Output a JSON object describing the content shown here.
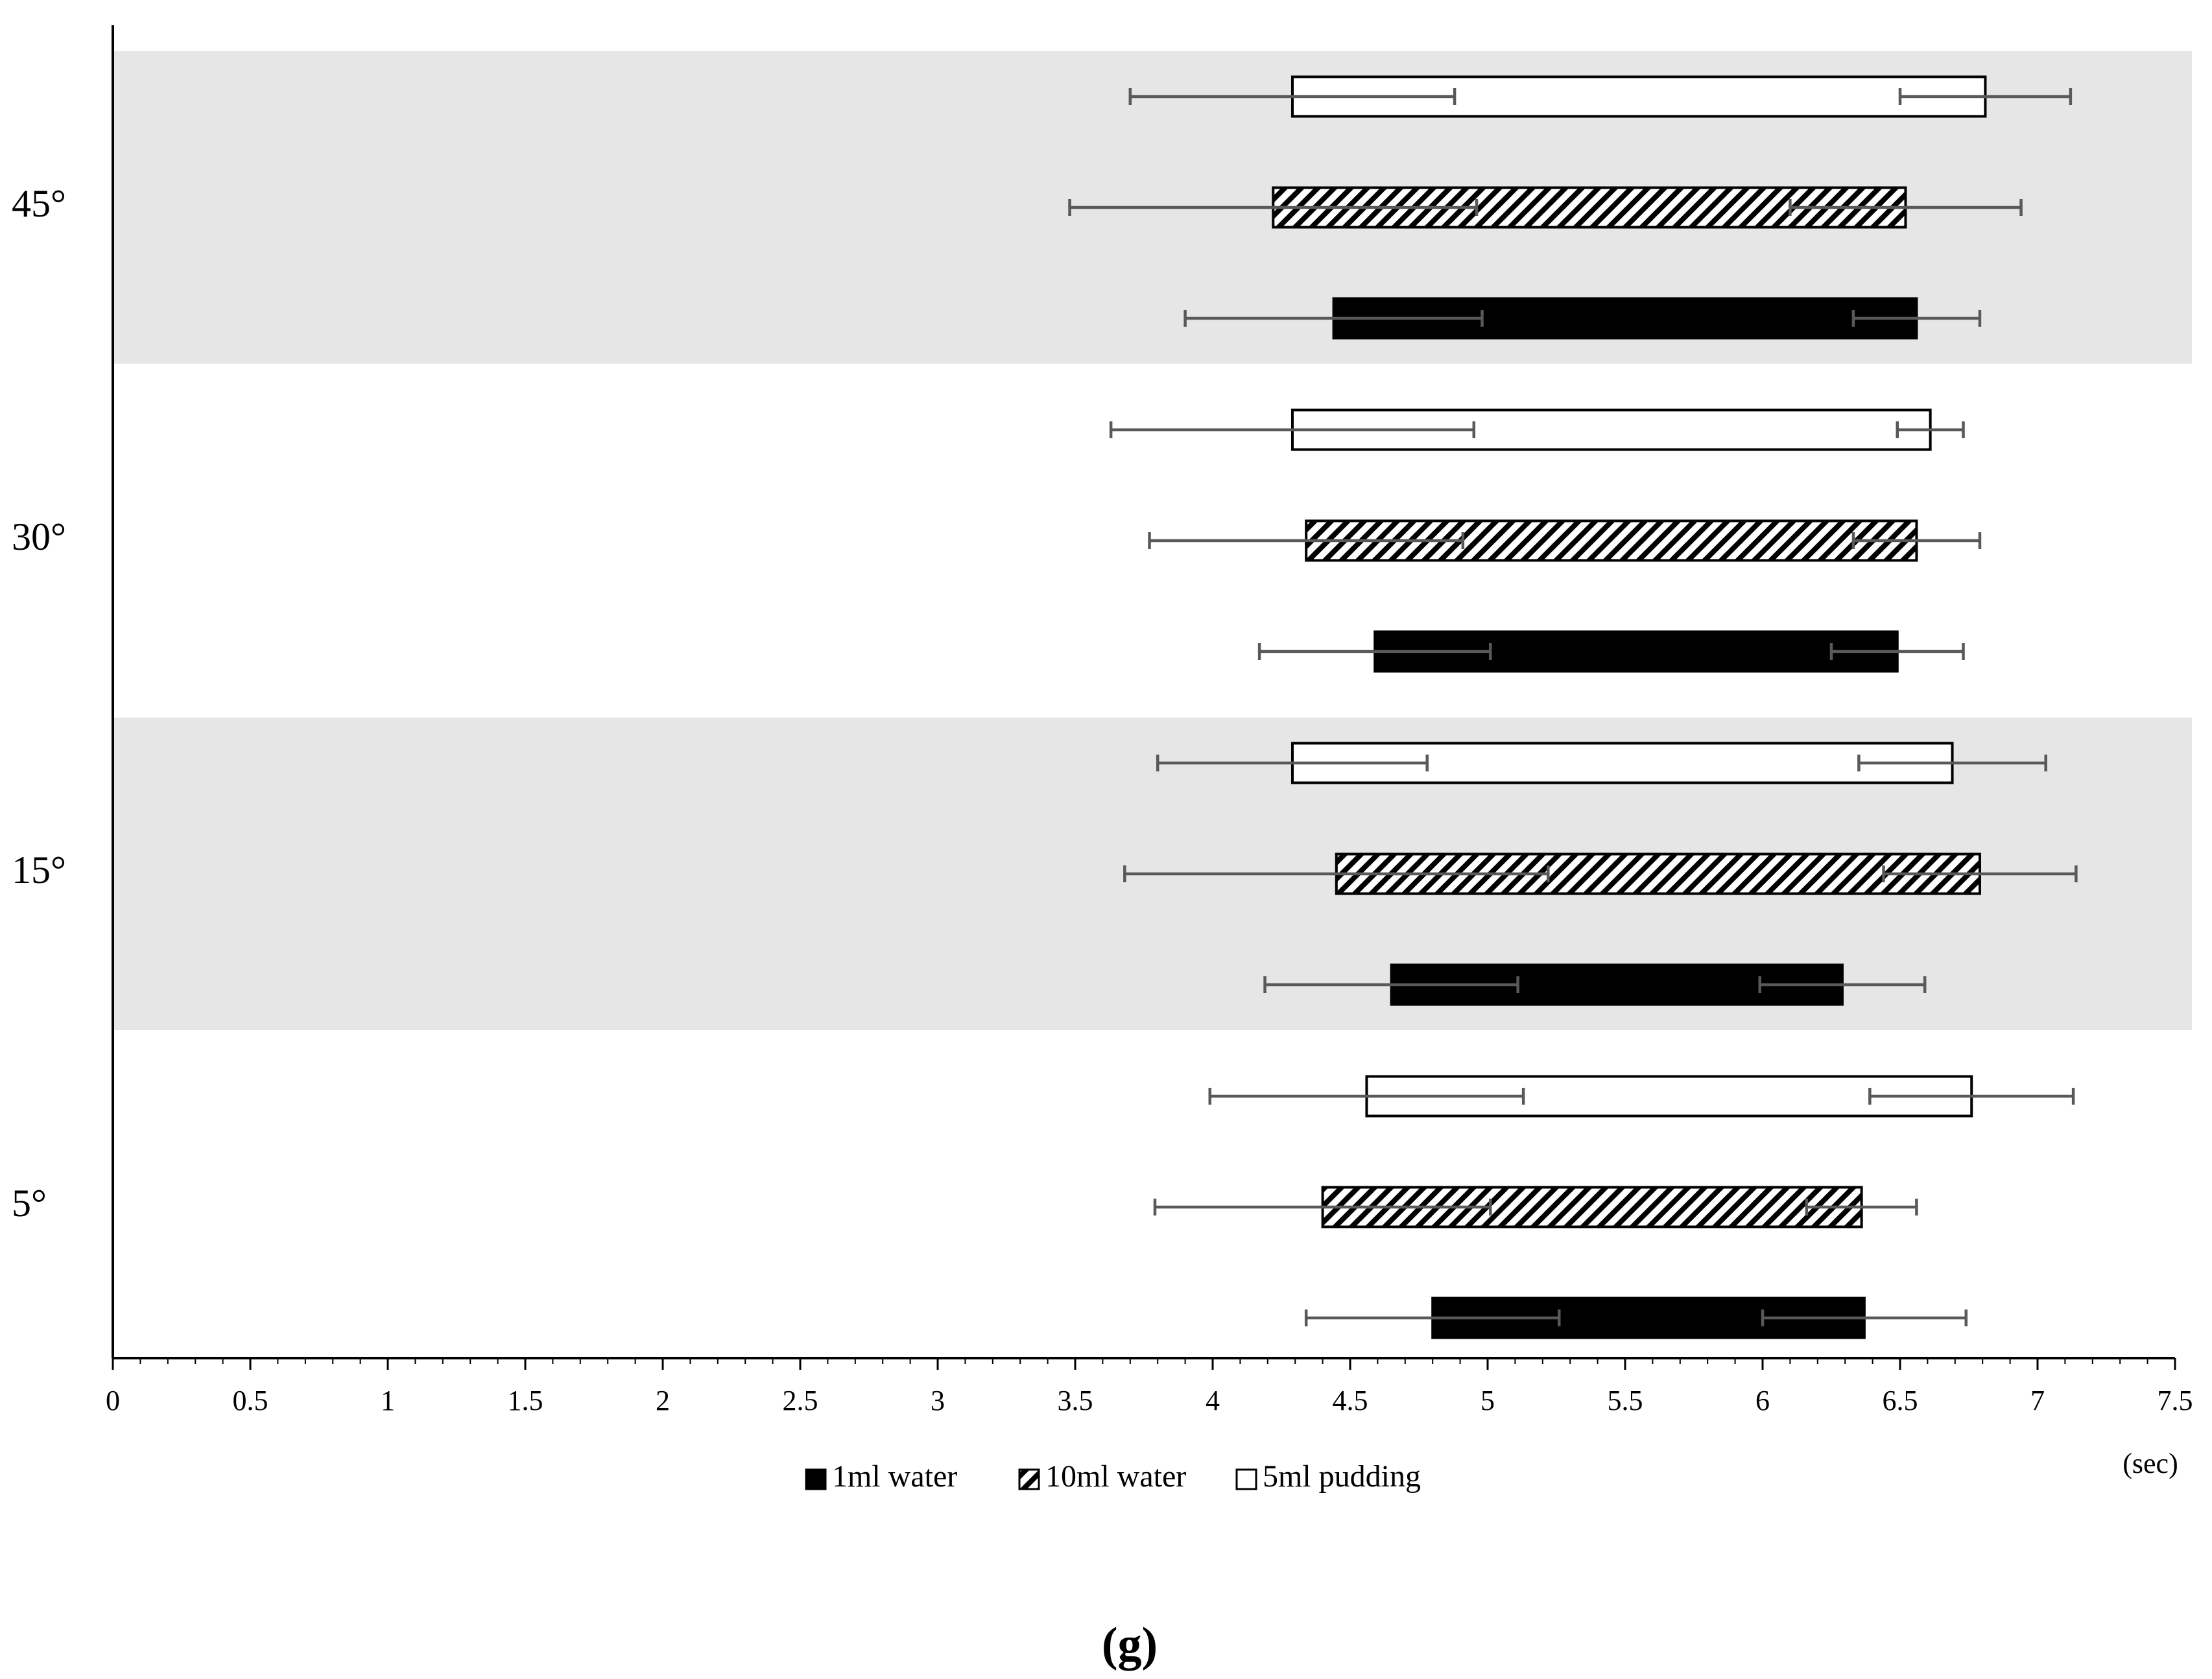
{
  "chart_data": {
    "type": "floating-bar-horizontal",
    "caption": "(g)",
    "x_label": "(sec)",
    "categories": [
      "5°",
      "15°",
      "30°",
      "45°"
    ],
    "xlim": [
      0,
      7.5
    ],
    "xticks": [
      0,
      0.5,
      1,
      1.5,
      2,
      2.5,
      3,
      3.5,
      4,
      4.5,
      5,
      5.5,
      6,
      6.5,
      7,
      7.5
    ],
    "series": [
      {
        "name": "1ml water",
        "color": "#000000",
        "start": [
          4.8,
          4.65,
          4.59,
          4.44
        ],
        "start_error": [
          0.46,
          0.46,
          0.42,
          0.54
        ],
        "end": [
          6.37,
          6.29,
          6.49,
          6.56
        ],
        "end_error": [
          0.37,
          0.3,
          0.24,
          0.23
        ]
      },
      {
        "name": "10ml water",
        "color": "#000000",
        "pattern": "diagonal-hatch",
        "start": [
          4.4,
          4.45,
          4.34,
          4.22
        ],
        "start_error": [
          0.61,
          0.77,
          0.57,
          0.74
        ],
        "end": [
          6.36,
          6.79,
          6.56,
          6.52
        ],
        "end_error": [
          0.2,
          0.35,
          0.23,
          0.42
        ]
      },
      {
        "name": "5ml pudding",
        "color": "#ffffff",
        "start": [
          4.56,
          4.29,
          4.29,
          4.29
        ],
        "start_error": [
          0.57,
          0.49,
          0.66,
          0.59
        ],
        "end": [
          6.76,
          6.69,
          6.61,
          6.81
        ],
        "end_error": [
          0.37,
          0.34,
          0.12,
          0.31
        ]
      }
    ]
  }
}
